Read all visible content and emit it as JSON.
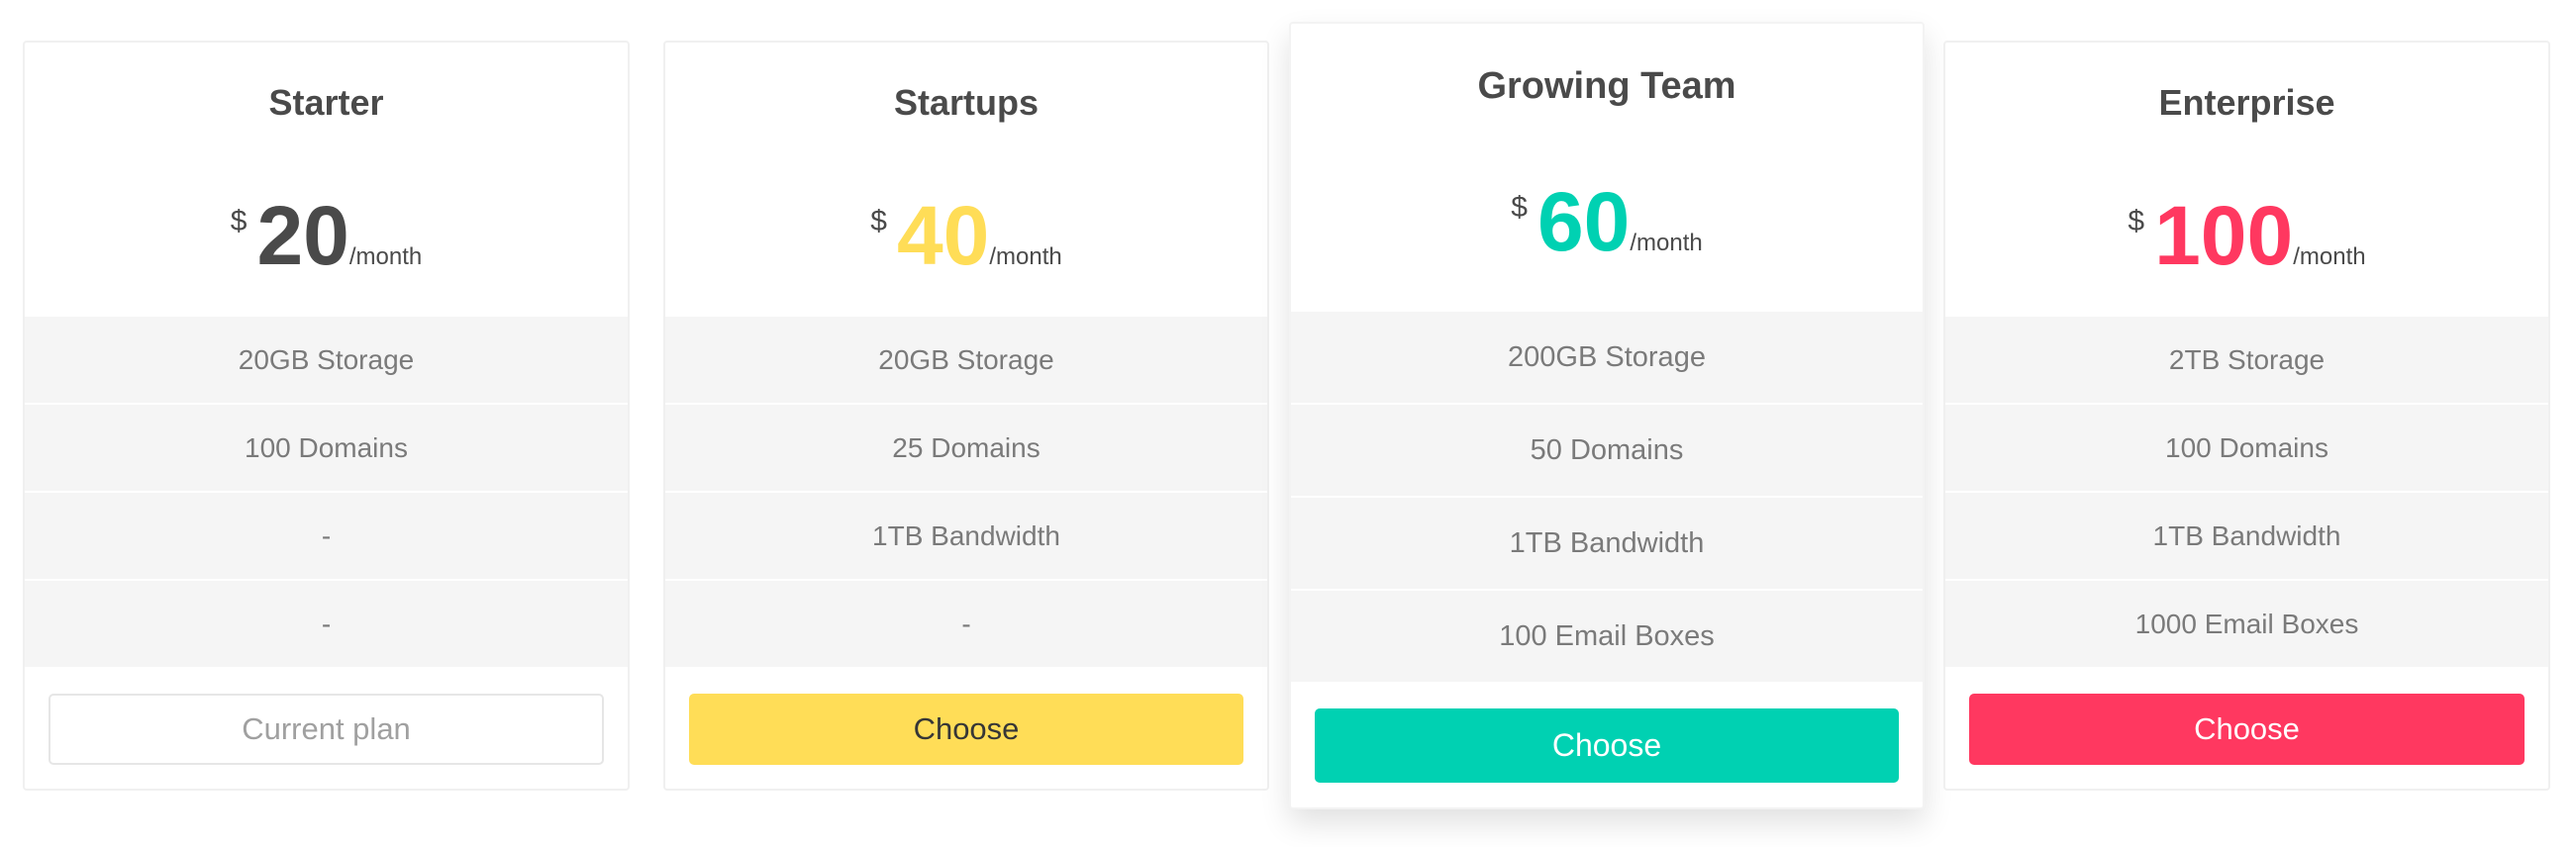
{
  "currency_symbol": "$",
  "period": "/month",
  "plans": [
    {
      "name": "Starter",
      "price": "20",
      "accent": "#4a4a4a",
      "features": [
        "20GB Storage",
        "100 Domains",
        "-",
        "-"
      ],
      "button": {
        "label": "Current plan",
        "bg": "#ffffff",
        "fg": "#a0a0a0",
        "border": "#e6e6e6"
      }
    },
    {
      "name": "Startups",
      "price": "40",
      "accent": "#ffdd57",
      "features": [
        "20GB Storage",
        "25 Domains",
        "1TB Bandwidth",
        "-"
      ],
      "button": {
        "label": "Choose",
        "bg": "#ffdd57",
        "fg": "#363636",
        "border": "#ffdd57"
      }
    },
    {
      "name": "Growing Team",
      "price": "60",
      "accent": "#00d1b2",
      "features": [
        "200GB Storage",
        "50 Domains",
        "1TB Bandwidth",
        "100 Email Boxes"
      ],
      "button": {
        "label": "Choose",
        "bg": "#00d1b2",
        "fg": "#ffffff",
        "border": "#00d1b2"
      }
    },
    {
      "name": "Enterprise",
      "price": "100",
      "accent": "#ff3860",
      "features": [
        "2TB Storage",
        "100 Domains",
        "1TB Bandwidth",
        "1000 Email Boxes"
      ],
      "button": {
        "label": "Choose",
        "bg": "#ff3860",
        "fg": "#ffffff",
        "border": "#ff3860"
      }
    }
  ]
}
